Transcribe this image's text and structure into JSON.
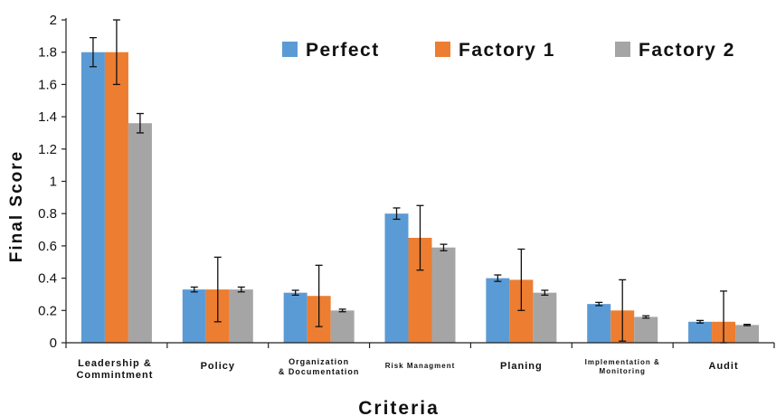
{
  "chart_data": {
    "type": "bar",
    "title": "",
    "xlabel": "Criteria",
    "ylabel": "Final Score",
    "ylim": [
      0,
      2
    ],
    "yticks": [
      "0",
      "0.2",
      "0.4",
      "0.6",
      "0.8",
      "1",
      "1.2",
      "1.4",
      "1.6",
      "1.8",
      "2"
    ],
    "legend_position": "top-right",
    "grid": false,
    "categories": [
      [
        "Leadership &",
        "Commintment"
      ],
      [
        "Policy"
      ],
      [
        "Organization",
        "& Documentation"
      ],
      [
        "Risk Managment"
      ],
      [
        "Planing"
      ],
      [
        "Implementation &",
        "Monitoring"
      ],
      [
        "Audit"
      ]
    ],
    "series": [
      {
        "name": "Perfect",
        "color": "#5b9bd5",
        "values": [
          1.8,
          0.33,
          0.31,
          0.8,
          0.4,
          0.24,
          0.13
        ],
        "error": [
          0.09,
          0.015,
          0.015,
          0.035,
          0.02,
          0.01,
          0.008
        ]
      },
      {
        "name": "Factory 1",
        "color": "#ed7d31",
        "values": [
          1.8,
          0.33,
          0.29,
          0.65,
          0.39,
          0.2,
          0.13
        ],
        "error": [
          0.2,
          0.2,
          0.19,
          0.2,
          0.19,
          0.19,
          0.19
        ]
      },
      {
        "name": "Factory 2",
        "color": "#a5a5a5",
        "values": [
          1.36,
          0.33,
          0.2,
          0.59,
          0.31,
          0.16,
          0.11
        ],
        "error": [
          0.06,
          0.015,
          0.008,
          0.02,
          0.015,
          0.007,
          0.004
        ]
      }
    ]
  }
}
